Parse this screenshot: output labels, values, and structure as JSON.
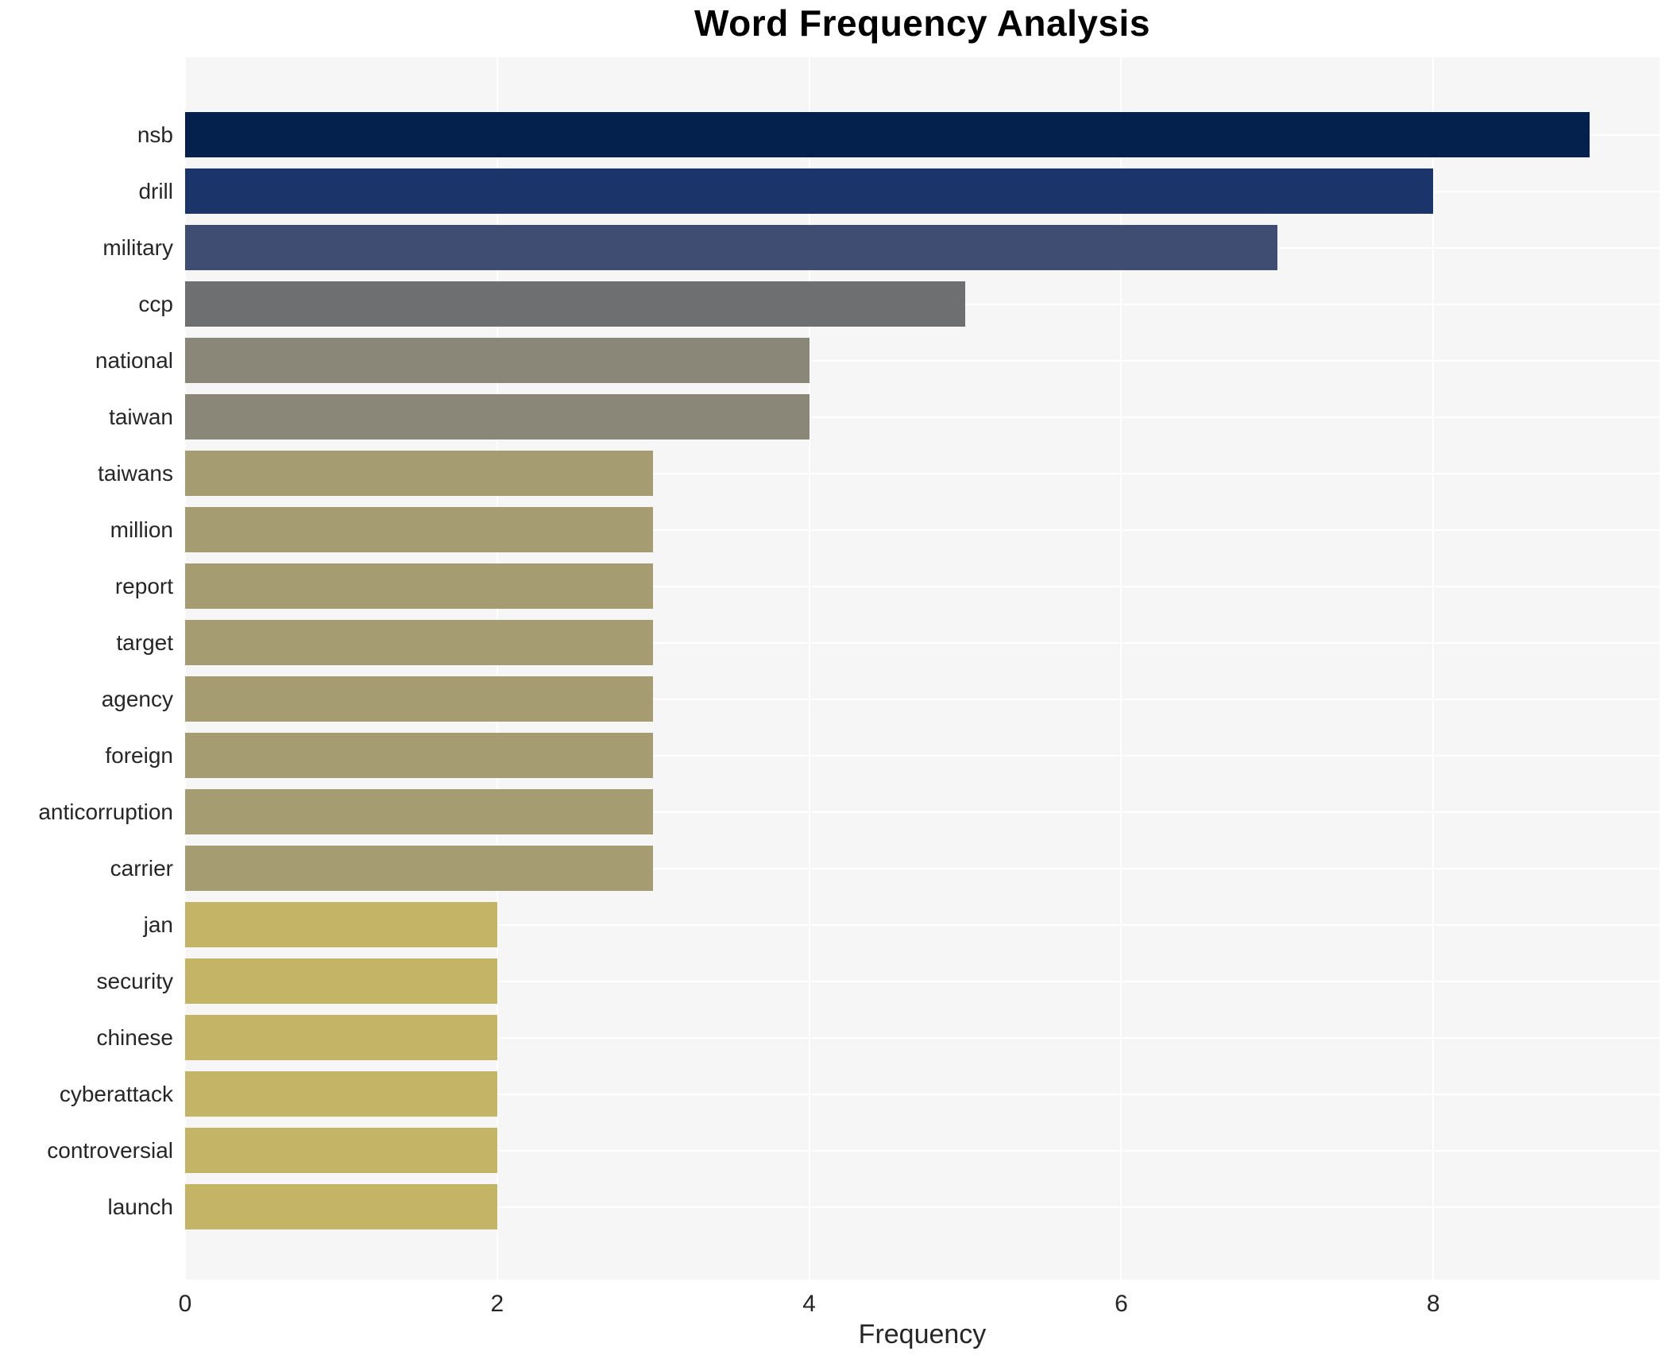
{
  "chart_data": {
    "type": "bar",
    "orientation": "horizontal",
    "title": "Word Frequency Analysis",
    "xlabel": "Frequency",
    "ylabel": "",
    "categories": [
      "nsb",
      "drill",
      "military",
      "ccp",
      "national",
      "taiwan",
      "taiwans",
      "million",
      "report",
      "target",
      "agency",
      "foreign",
      "anticorruption",
      "carrier",
      "jan",
      "security",
      "chinese",
      "cyberattack",
      "controversial",
      "launch"
    ],
    "values": [
      9,
      8,
      7,
      5,
      4,
      4,
      3,
      3,
      3,
      3,
      3,
      3,
      3,
      3,
      2,
      2,
      2,
      2,
      2,
      2
    ],
    "bar_colors": [
      "#03214c",
      "#1b356b",
      "#3e4d71",
      "#6e6f71",
      "#8a8779",
      "#8a8779",
      "#a69c72",
      "#a69c72",
      "#a69c72",
      "#a69c72",
      "#a69c72",
      "#a69c72",
      "#a69c72",
      "#a69c72",
      "#c3b466",
      "#c3b466",
      "#c3b466",
      "#c3b466",
      "#c3b466",
      "#c3b466"
    ],
    "x_ticks": [
      0,
      2,
      4,
      6,
      8
    ],
    "xlim": [
      0,
      9.45
    ],
    "grid": true,
    "grid_color": "#ffffff",
    "plot_bg": "#f6f6f7",
    "legend": false
  }
}
